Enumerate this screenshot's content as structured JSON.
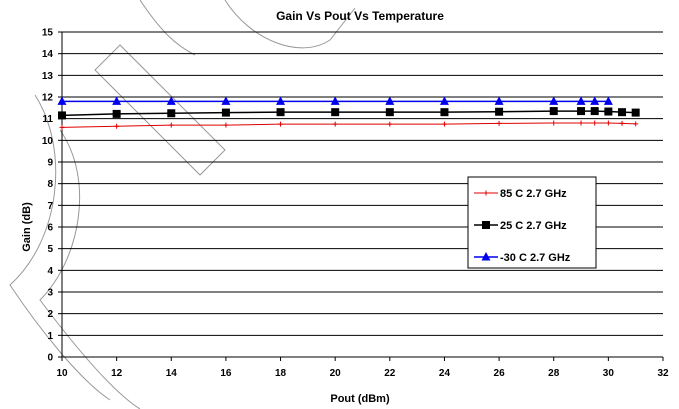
{
  "chart_data": {
    "type": "line",
    "title": "Gain Vs Pout Vs Temperature",
    "xlabel": "Pout (dBm)",
    "ylabel": "Gain (dB)",
    "xlim": [
      10,
      32
    ],
    "ylim": [
      0,
      15
    ],
    "xticks": [
      10,
      12,
      14,
      16,
      18,
      20,
      22,
      24,
      26,
      28,
      30,
      32
    ],
    "yticks": [
      0,
      1,
      2,
      3,
      4,
      5,
      6,
      7,
      8,
      9,
      10,
      11,
      12,
      13,
      14,
      15
    ],
    "grid": "horizontal",
    "legend_position": "right",
    "series": [
      {
        "name": "85 C 2.7 GHz",
        "color": "#e00000",
        "marker": "plus",
        "x": [
          10,
          12,
          14,
          16,
          18,
          20,
          22,
          24,
          26,
          28,
          29,
          29.5,
          30,
          30.5,
          31
        ],
        "y": [
          10.6,
          10.65,
          10.7,
          10.7,
          10.75,
          10.75,
          10.75,
          10.75,
          10.78,
          10.8,
          10.8,
          10.8,
          10.8,
          10.78,
          10.76
        ]
      },
      {
        "name": "25 C 2.7 GHz",
        "color": "#000000",
        "marker": "square",
        "x": [
          10,
          12,
          14,
          16,
          18,
          20,
          22,
          24,
          26,
          28,
          29,
          29.5,
          30,
          30.5,
          31
        ],
        "y": [
          11.15,
          11.22,
          11.25,
          11.28,
          11.3,
          11.3,
          11.3,
          11.3,
          11.32,
          11.35,
          11.35,
          11.35,
          11.33,
          11.3,
          11.28
        ]
      },
      {
        "name": "-30 C 2.7 GHz",
        "color": "#0000ee",
        "marker": "triangle",
        "x": [
          10,
          12,
          14,
          16,
          18,
          20,
          22,
          24,
          26,
          28,
          29,
          29.5,
          30
        ],
        "y": [
          11.8,
          11.8,
          11.8,
          11.8,
          11.8,
          11.8,
          11.8,
          11.8,
          11.8,
          11.8,
          11.8,
          11.8,
          11.8
        ]
      }
    ]
  }
}
